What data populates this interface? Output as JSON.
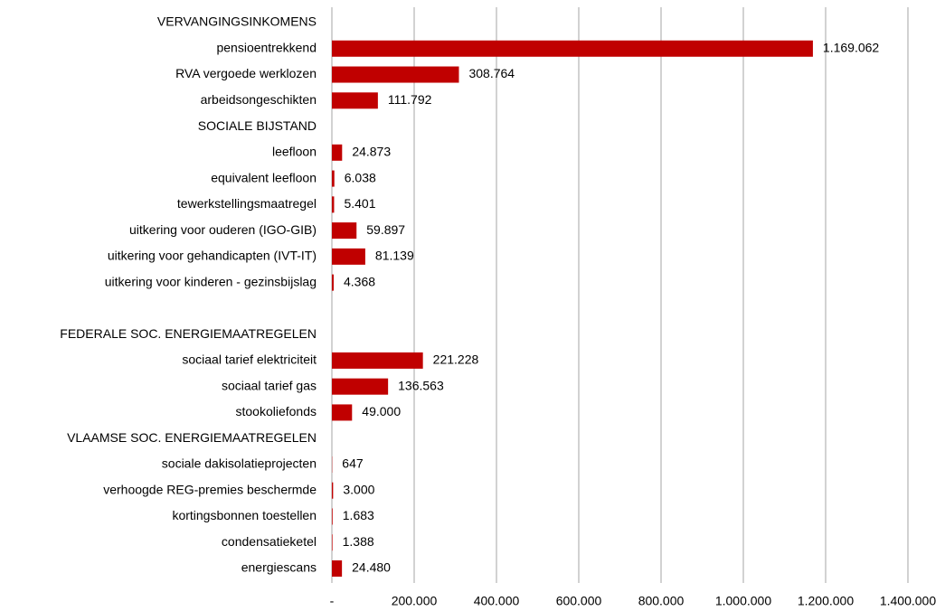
{
  "chart_data": {
    "type": "bar",
    "orientation": "horizontal",
    "categories": [
      "VERVANGINGSINKOMENS",
      "pensioentrekkend",
      "RVA vergoede werklozen",
      "arbeidsongeschikten",
      "SOCIALE BIJSTAND",
      "leefloon",
      "equivalent leefloon",
      "tewerkstellingsmaatregel",
      "uitkering voor ouderen (IGO-GIB)",
      "uitkering voor gehandicapten (IVT-IT)",
      "uitkering voor kinderen - gezinsbijslag",
      null,
      "FEDERALE SOC. ENERGIEMAATREGELEN",
      "sociaal tarief elektriciteit",
      "sociaal tarief gas",
      "stookoliefonds",
      "VLAAMSE SOC. ENERGIEMAATREGELEN",
      "sociale dakisolatieprojecten",
      "verhoogde REG-premies beschermde",
      "kortingsbonnen toestellen",
      "condensatieketel",
      "energiescans"
    ],
    "values": [
      null,
      1169062,
      308764,
      111792,
      null,
      24873,
      6038,
      5401,
      59897,
      81139,
      4368,
      null,
      null,
      221228,
      136563,
      49000,
      null,
      647,
      3000,
      1683,
      1388,
      24480
    ],
    "value_labels": [
      null,
      "1.169.062",
      "308.764",
      "111.792",
      null,
      "24.873",
      "6.038",
      "5.401",
      "59.897",
      "81.139",
      "4.368",
      null,
      null,
      "221.228",
      "136.563",
      "49.000",
      null,
      "647",
      "3.000",
      "1.683",
      "1.388",
      "24.480"
    ],
    "color": "#c00000",
    "xlim": [
      0,
      1400000
    ],
    "xticks": [
      {
        "value": 0,
        "label": "-"
      },
      {
        "value": 200000,
        "label": "200.000"
      },
      {
        "value": 400000,
        "label": "400.000"
      },
      {
        "value": 600000,
        "label": "600.000"
      },
      {
        "value": 800000,
        "label": "800.000"
      },
      {
        "value": 1000000,
        "label": "1.000.000"
      },
      {
        "value": 1200000,
        "label": "1.200.000"
      },
      {
        "value": 1400000,
        "label": "1.400.000"
      }
    ],
    "grid": true
  }
}
